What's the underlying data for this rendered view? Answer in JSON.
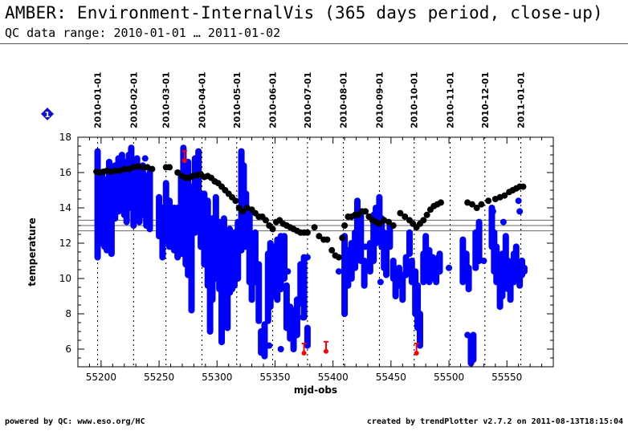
{
  "header": {
    "title": "AMBER: Environment-InternalVis (365 days period, close-up)",
    "subtitle": "QC data range: 2010-01-01 … 2011-01-02"
  },
  "footer": {
    "left": "powered by QC: www.eso.org/HC",
    "right": "created by trendPlotter v2.7.2 on 2011-08-13T18:15:04"
  },
  "badge": {
    "icon": "diamond-info-icon",
    "label": "1",
    "color": "#1010cc"
  },
  "chart_data": {
    "type": "scatter",
    "title": "",
    "xlabel": "mjd-obs",
    "ylabel": "temperature",
    "xlim": [
      55180,
      55590
    ],
    "ylim": [
      5,
      18
    ],
    "x_ticks": [
      55200,
      55250,
      55300,
      55350,
      55400,
      55450,
      55500,
      55550
    ],
    "y_ticks": [
      6,
      8,
      10,
      12,
      14,
      16,
      18
    ],
    "grid": false,
    "legend": "none",
    "month_lines": [
      {
        "label": "2010-01-01",
        "mjd": 55197
      },
      {
        "label": "2010-02-01",
        "mjd": 55228
      },
      {
        "label": "2010-03-01",
        "mjd": 55256
      },
      {
        "label": "2010-04-01",
        "mjd": 55287
      },
      {
        "label": "2010-05-01",
        "mjd": 55317
      },
      {
        "label": "2010-06-01",
        "mjd": 55348
      },
      {
        "label": "2010-07-01",
        "mjd": 55378
      },
      {
        "label": "2010-08-01",
        "mjd": 55409
      },
      {
        "label": "2010-09-01",
        "mjd": 55440
      },
      {
        "label": "2010-10-01",
        "mjd": 55470
      },
      {
        "label": "2010-11-01",
        "mjd": 55501
      },
      {
        "label": "2010-12-01",
        "mjd": 55531
      },
      {
        "label": "2011-01-01",
        "mjd": 55562
      }
    ],
    "reference_lines": [
      12.7,
      13.0,
      13.3
    ],
    "colors": {
      "internal": "#0000ff",
      "reference": "#000000",
      "outlier": "#ff0000",
      "refline": "#666666"
    },
    "series": [
      {
        "color": "#000000",
        "points": [
          [
            55196,
            16.05
          ],
          [
            55199,
            16.0
          ],
          [
            55202,
            16.05
          ],
          [
            55205,
            16.1
          ],
          [
            55208,
            16.05
          ],
          [
            55212,
            16.1
          ],
          [
            55216,
            16.1
          ],
          [
            55220,
            16.2
          ],
          [
            55224,
            16.2
          ],
          [
            55228,
            16.3
          ],
          [
            55232,
            16.35
          ],
          [
            55236,
            16.3
          ],
          [
            55240,
            16.3
          ],
          [
            55244,
            16.2
          ],
          [
            55256,
            16.3
          ],
          [
            55259,
            16.3
          ],
          [
            55266,
            16.0
          ],
          [
            55270,
            15.8
          ],
          [
            55273,
            15.7
          ],
          [
            55276,
            15.7
          ],
          [
            55279,
            15.8
          ],
          [
            55283,
            15.85
          ],
          [
            55286,
            15.9
          ],
          [
            55289,
            15.75
          ],
          [
            55292,
            15.8
          ],
          [
            55295,
            15.7
          ],
          [
            55298,
            15.5
          ],
          [
            55301,
            15.4
          ],
          [
            55304,
            15.2
          ],
          [
            55307,
            15.0
          ],
          [
            55310,
            14.8
          ],
          [
            55313,
            14.6
          ],
          [
            55316,
            14.4
          ],
          [
            55319,
            14.0
          ],
          [
            55322,
            13.8
          ],
          [
            55326,
            14.0
          ],
          [
            55330,
            13.9
          ],
          [
            55333,
            13.7
          ],
          [
            55336,
            13.5
          ],
          [
            55339,
            13.5
          ],
          [
            55342,
            13.3
          ],
          [
            55345,
            13.0
          ],
          [
            55348,
            12.8
          ],
          [
            55351,
            13.2
          ],
          [
            55354,
            13.3
          ],
          [
            55357,
            13.1
          ],
          [
            55360,
            13.0
          ],
          [
            55363,
            12.9
          ],
          [
            55366,
            12.8
          ],
          [
            55369,
            12.7
          ],
          [
            55372,
            12.6
          ],
          [
            55375,
            12.6
          ],
          [
            55378,
            12.6
          ],
          [
            55384,
            12.9
          ],
          [
            55388,
            12.4
          ],
          [
            55392,
            12.2
          ],
          [
            55395,
            12.2
          ],
          [
            55399,
            11.6
          ],
          [
            55402,
            11.3
          ],
          [
            55405,
            11.2
          ],
          [
            55408,
            12.3
          ],
          [
            55410,
            13.0
          ],
          [
            55413,
            13.5
          ],
          [
            55416,
            13.5
          ],
          [
            55419,
            13.6
          ],
          [
            55422,
            13.6
          ],
          [
            55425,
            13.8
          ],
          [
            55428,
            13.8
          ],
          [
            55431,
            13.5
          ],
          [
            55434,
            13.3
          ],
          [
            55437,
            13.2
          ],
          [
            55440,
            13.1
          ],
          [
            55444,
            13.3
          ],
          [
            55448,
            13.2
          ],
          [
            55452,
            13.0
          ],
          [
            55458,
            13.7
          ],
          [
            55462,
            13.5
          ],
          [
            55466,
            13.3
          ],
          [
            55469,
            13.1
          ],
          [
            55472,
            12.9
          ],
          [
            55475,
            13.1
          ],
          [
            55478,
            13.3
          ],
          [
            55481,
            13.6
          ],
          [
            55484,
            13.9
          ],
          [
            55487,
            14.1
          ],
          [
            55490,
            14.2
          ],
          [
            55493,
            14.3
          ],
          [
            55516,
            14.3
          ],
          [
            55520,
            14.2
          ],
          [
            55524,
            14.0
          ],
          [
            55528,
            14.2
          ],
          [
            55534,
            14.4
          ],
          [
            55540,
            14.5
          ],
          [
            55544,
            14.6
          ],
          [
            55548,
            14.7
          ],
          [
            55552,
            14.9
          ],
          [
            55555,
            15.0
          ],
          [
            55558,
            15.1
          ],
          [
            55561,
            15.2
          ],
          [
            55564,
            15.2
          ]
        ]
      },
      {
        "color": "#0000ff",
        "columns": [
          [
            55197,
            11.2,
            17.2
          ],
          [
            55199,
            12.0,
            15.6
          ],
          [
            55201,
            12.4,
            16.0
          ],
          [
            55203,
            11.8,
            14.8
          ],
          [
            55205,
            11.6,
            15.6
          ],
          [
            55207,
            12.2,
            16.6
          ],
          [
            55209,
            11.4,
            15.8
          ],
          [
            55212,
            13.4,
            16.4
          ],
          [
            55215,
            13.8,
            16.8
          ],
          [
            55218,
            14.2,
            17.0
          ],
          [
            55220,
            13.6,
            16.6
          ],
          [
            55222,
            13.2,
            16.4
          ],
          [
            55224,
            14.0,
            17.0
          ],
          [
            55226,
            14.4,
            17.4
          ],
          [
            55228,
            13.0,
            16.2
          ],
          [
            55231,
            14.2,
            16.8
          ],
          [
            55233,
            13.2,
            16.0
          ],
          [
            55236,
            13.6,
            16.4
          ],
          [
            55239,
            13.0,
            15.8
          ],
          [
            55242,
            12.8,
            16.0
          ],
          [
            55250,
            12.4,
            14.6
          ],
          [
            55253,
            11.2,
            14.0
          ],
          [
            55256,
            12.0,
            15.4
          ],
          [
            55259,
            11.8,
            14.4
          ],
          [
            55263,
            11.6,
            14.0
          ],
          [
            55266,
            11.2,
            14.0
          ],
          [
            55269,
            11.4,
            15.8
          ],
          [
            55271,
            13.4,
            17.4
          ],
          [
            55273,
            10.8,
            16.6
          ],
          [
            55275,
            10.2,
            16.6
          ],
          [
            55278,
            8.2,
            15.2
          ],
          [
            55281,
            12.6,
            16.8
          ],
          [
            55284,
            13.0,
            17.2
          ],
          [
            55286,
            11.8,
            14.2
          ],
          [
            55289,
            10.8,
            14.8
          ],
          [
            55292,
            9.6,
            14.4
          ],
          [
            55294,
            7.0,
            13.0
          ],
          [
            55296,
            8.8,
            13.4
          ],
          [
            55299,
            10.0,
            14.6
          ],
          [
            55302,
            9.4,
            13.2
          ],
          [
            55304,
            6.4,
            12.6
          ],
          [
            55306,
            8.2,
            13.4
          ],
          [
            55309,
            7.2,
            11.6
          ],
          [
            55311,
            9.2,
            12.8
          ],
          [
            55313,
            9.4,
            12.4
          ],
          [
            55315,
            9.6,
            12.6
          ],
          [
            55318,
            10.0,
            13.2
          ],
          [
            55321,
            11.6,
            17.2
          ],
          [
            55323,
            12.0,
            16.4
          ],
          [
            55325,
            11.8,
            14.8
          ],
          [
            55328,
            9.8,
            13.6
          ],
          [
            55330,
            8.8,
            12.0
          ],
          [
            55333,
            9.8,
            12.6
          ],
          [
            55336,
            7.6,
            10.8
          ],
          [
            55338,
            5.8,
            7.0
          ],
          [
            55341,
            5.6,
            7.4
          ],
          [
            55344,
            7.6,
            11.4
          ],
          [
            55346,
            8.4,
            12.0
          ],
          [
            55349,
            9.0,
            11.8
          ],
          [
            55352,
            8.8,
            12.2
          ],
          [
            55355,
            9.4,
            12.4
          ],
          [
            55358,
            10.0,
            12.4
          ],
          [
            55360,
            7.2,
            9.6
          ],
          [
            55363,
            6.6,
            8.4
          ],
          [
            55366,
            6.0,
            8.2
          ],
          [
            55369,
            6.8,
            8.8
          ],
          [
            55372,
            8.6,
            10.8
          ],
          [
            55375,
            7.8,
            11.2
          ],
          [
            55378,
            6.2,
            7.2
          ],
          [
            55410,
            8.0,
            12.4
          ],
          [
            55413,
            9.6,
            11.6
          ],
          [
            55416,
            10.0,
            12.0
          ],
          [
            55419,
            10.6,
            12.6
          ],
          [
            55421,
            12.0,
            14.4
          ],
          [
            55424,
            11.0,
            13.6
          ],
          [
            55427,
            9.6,
            11.0
          ],
          [
            55432,
            10.4,
            12.0
          ],
          [
            55435,
            11.0,
            13.6
          ],
          [
            55437,
            12.0,
            14.0
          ],
          [
            55440,
            12.4,
            14.6
          ],
          [
            55442,
            11.8,
            13.4
          ],
          [
            55444,
            10.6,
            12.6
          ],
          [
            55446,
            10.2,
            11.6
          ],
          [
            55449,
            11.8,
            13.0
          ],
          [
            55452,
            10.0,
            11.0
          ],
          [
            55454,
            9.0,
            10.2
          ],
          [
            55457,
            9.6,
            10.6
          ],
          [
            55460,
            8.8,
            10.2
          ],
          [
            55463,
            10.2,
            11.2
          ],
          [
            55466,
            11.4,
            12.6
          ],
          [
            55468,
            9.8,
            11.0
          ],
          [
            55471,
            8.0,
            10.4
          ],
          [
            55473,
            7.2,
            9.6
          ],
          [
            55475,
            6.2,
            8.0
          ],
          [
            55478,
            9.8,
            11.4
          ],
          [
            55480,
            10.4,
            12.4
          ],
          [
            55483,
            9.8,
            11.6
          ],
          [
            55486,
            10.0,
            11.2
          ],
          [
            55489,
            9.8,
            11.0
          ],
          [
            55492,
            10.4,
            11.4
          ],
          [
            55512,
            9.8,
            12.2
          ],
          [
            55515,
            10.0,
            11.4
          ],
          [
            55517,
            9.4,
            10.6
          ],
          [
            55519,
            5.2,
            6.6
          ],
          [
            55521,
            5.4,
            6.8
          ],
          [
            55523,
            10.6,
            12.6
          ],
          [
            55526,
            11.0,
            13.2
          ],
          [
            55537,
            11.8,
            14.0
          ],
          [
            55539,
            10.4,
            12.6
          ],
          [
            55541,
            9.8,
            11.8
          ],
          [
            55544,
            8.4,
            10.8
          ],
          [
            55546,
            9.0,
            11.4
          ],
          [
            55549,
            10.6,
            12.4
          ],
          [
            55551,
            9.4,
            11.0
          ],
          [
            55553,
            8.8,
            10.6
          ],
          [
            55556,
            9.8,
            11.4
          ],
          [
            55558,
            10.4,
            11.8
          ],
          [
            55561,
            9.6,
            10.8
          ],
          [
            55563,
            10.2,
            11.0
          ],
          [
            55565,
            10.4,
            10.6
          ]
        ],
        "points": [
          [
            55212,
            15.4
          ],
          [
            55238,
            16.8
          ],
          [
            55259,
            13.4
          ],
          [
            55290,
            12.6
          ],
          [
            55320,
            12.2
          ],
          [
            55345,
            6.2
          ],
          [
            55355,
            6.0
          ],
          [
            55361,
            10.4
          ],
          [
            55374,
            7.8
          ],
          [
            55378,
            11.2
          ],
          [
            55405,
            10.4
          ],
          [
            55428,
            11.8
          ],
          [
            55441,
            9.8
          ],
          [
            55465,
            10.4
          ],
          [
            55485,
            10.8
          ],
          [
            55500,
            10.6
          ],
          [
            55516,
            6.8
          ],
          [
            55530,
            11.0
          ],
          [
            55547,
            10.2
          ],
          [
            55561,
            13.8
          ],
          [
            55560,
            14.4
          ],
          [
            55519,
            6.0
          ],
          [
            55538,
            13.8
          ],
          [
            55547,
            13.2
          ],
          [
            55491,
            11.2
          ]
        ]
      },
      {
        "color": "#ff0000",
        "points": [
          [
            55272,
            16.9
          ],
          [
            55375,
            6.0
          ],
          [
            55394,
            6.1
          ],
          [
            55472,
            6.0
          ]
        ]
      }
    ]
  }
}
